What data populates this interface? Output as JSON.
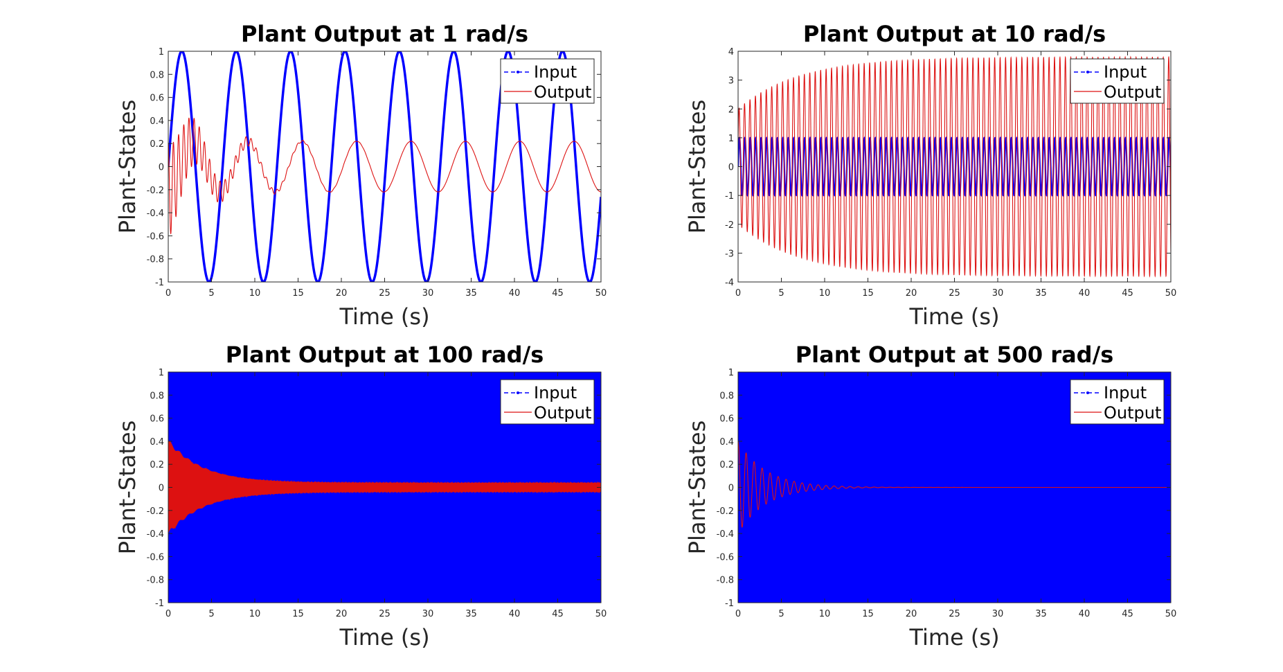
{
  "colors": {
    "input": "#0000ff",
    "input_fill": "#0000ff",
    "output": "#dd1111",
    "axis": "#262626"
  },
  "chart_data": [
    {
      "type": "line",
      "title": "Plant Output at 1 rad/s",
      "xlabel": "Time (s)",
      "ylabel": "Plant-States",
      "xlim": [
        0,
        50
      ],
      "ylim": [
        -1,
        1
      ],
      "xticks": [
        "0",
        "5",
        "10",
        "15",
        "20",
        "25",
        "30",
        "35",
        "40",
        "45",
        "50"
      ],
      "yticks": [
        "-1",
        "-0.8",
        "-0.6",
        "-0.4",
        "-0.2",
        "0",
        "0.2",
        "0.4",
        "0.6",
        "0.8",
        "1"
      ],
      "legend_position": "top-right",
      "series": [
        {
          "name": "Input",
          "amplitude": 1,
          "frequency_rad_s": 1,
          "style": "solid-thick"
        },
        {
          "name": "Output",
          "steady_amplitude": 0.22,
          "initial_peak": 0.6,
          "style": "solid"
        }
      ]
    },
    {
      "type": "line",
      "title": "Plant Output at 10 rad/s",
      "xlabel": "Time (s)",
      "ylabel": "Plant-States",
      "xlim": [
        0,
        50
      ],
      "ylim": [
        -4,
        4
      ],
      "xticks": [
        "0",
        "5",
        "10",
        "15",
        "20",
        "25",
        "30",
        "35",
        "40",
        "45",
        "50"
      ],
      "yticks": [
        "-4",
        "-3",
        "-2",
        "-1",
        "0",
        "1",
        "2",
        "3",
        "4"
      ],
      "legend_position": "top-right",
      "series": [
        {
          "name": "Input",
          "amplitude": 1,
          "frequency_rad_s": 10,
          "style": "solid-thick"
        },
        {
          "name": "Output",
          "initial_amplitude": 2.0,
          "steady_amplitude": 3.8,
          "style": "solid"
        }
      ]
    },
    {
      "type": "line",
      "title": "Plant Output at 100 rad/s",
      "xlabel": "Time (s)",
      "ylabel": "Plant-States",
      "xlim": [
        0,
        50
      ],
      "ylim": [
        -1,
        1
      ],
      "xticks": [
        "0",
        "5",
        "10",
        "15",
        "20",
        "25",
        "30",
        "35",
        "40",
        "45",
        "50"
      ],
      "yticks": [
        "-1",
        "-0.8",
        "-0.6",
        "-0.4",
        "-0.2",
        "0",
        "0.2",
        "0.4",
        "0.6",
        "0.8",
        "1"
      ],
      "legend_position": "top-right",
      "series": [
        {
          "name": "Input",
          "amplitude": 1,
          "frequency_rad_s": 100,
          "style": "dense-fill"
        },
        {
          "name": "Output",
          "initial_peak": 0.4,
          "steady_amplitude": 0.04,
          "style": "solid"
        }
      ]
    },
    {
      "type": "line",
      "title": "Plant Output at 500 rad/s",
      "xlabel": "Time (s)",
      "ylabel": "Plant-States",
      "xlim": [
        0,
        50
      ],
      "ylim": [
        -1,
        1
      ],
      "xticks": [
        "0",
        "5",
        "10",
        "15",
        "20",
        "25",
        "30",
        "35",
        "40",
        "45",
        "50"
      ],
      "yticks": [
        "-1",
        "-0.8",
        "-0.6",
        "-0.4",
        "-0.2",
        "0",
        "0.2",
        "0.4",
        "0.6",
        "0.8",
        "1"
      ],
      "legend_position": "top-right",
      "series": [
        {
          "name": "Input",
          "amplitude": 1,
          "frequency_rad_s": 500,
          "style": "dense-fill"
        },
        {
          "name": "Output",
          "initial_peak": 0.4,
          "steady_amplitude": 0.0,
          "style": "solid"
        }
      ]
    }
  ]
}
